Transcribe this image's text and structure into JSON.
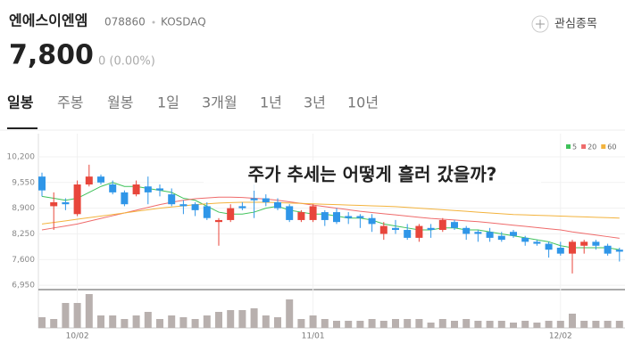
{
  "header": {
    "name": "엔에스이엔엠",
    "code": "078860",
    "market": "KOSDAQ",
    "watch": "관심종목",
    "price": "7,800",
    "change": "0 (0.00%)"
  },
  "tabs": [
    "일봉",
    "주봉",
    "월봉",
    "1일",
    "3개월",
    "1년",
    "3년",
    "10년"
  ],
  "overlay": "주가 추세는 어떻게 흘러 갔을까?",
  "chart_data": {
    "type": "candlestick",
    "categories": [
      null,
      null,
      null,
      "10/02",
      null,
      null,
      null,
      null,
      null,
      null,
      null,
      null,
      null,
      null,
      null,
      null,
      null,
      null,
      null,
      null,
      null,
      null,
      null,
      "11/01",
      null,
      null,
      null,
      null,
      null,
      null,
      null,
      null,
      null,
      null,
      null,
      null,
      null,
      null,
      null,
      null,
      null,
      null,
      null,
      null,
      "12/02",
      null,
      null,
      null,
      null,
      null
    ],
    "open": [
      9700,
      8950,
      9050,
      8750,
      9500,
      9700,
      9500,
      9300,
      9250,
      9450,
      9400,
      9250,
      9000,
      9000,
      8950,
      8550,
      8600,
      8950,
      9150,
      9150,
      9050,
      8950,
      8600,
      8600,
      8800,
      8800,
      8700,
      8700,
      8650,
      8250,
      8400,
      8350,
      8150,
      8400,
      8350,
      8550,
      8400,
      8300,
      8300,
      8200,
      8300,
      8150,
      8050,
      8000,
      7900,
      7750,
      7950,
      8050,
      7950,
      7850
    ],
    "high": [
      9800,
      9300,
      9150,
      9600,
      10000,
      9750,
      9600,
      9350,
      9600,
      9700,
      9500,
      9400,
      9100,
      9050,
      9050,
      8650,
      9000,
      9050,
      9500,
      9250,
      9150,
      9000,
      8850,
      9000,
      8850,
      8900,
      8800,
      8750,
      8750,
      8550,
      8600,
      8500,
      8500,
      8500,
      8650,
      8600,
      8450,
      8350,
      8400,
      8300,
      8350,
      8200,
      8100,
      8050,
      8050,
      8100,
      8100,
      8100,
      8000,
      7900
    ],
    "low": [
      9200,
      8350,
      8850,
      8700,
      9450,
      9500,
      9250,
      8950,
      9200,
      9000,
      9200,
      8950,
      8750,
      8700,
      8600,
      7950,
      8550,
      8850,
      8650,
      8950,
      8850,
      8550,
      8550,
      8550,
      8450,
      8500,
      8500,
      8400,
      8300,
      8100,
      8250,
      8100,
      8050,
      8150,
      8300,
      8350,
      8100,
      8050,
      8050,
      8050,
      8150,
      7950,
      7950,
      7650,
      7700,
      7250,
      7750,
      7850,
      7700,
      7550
    ],
    "close": [
      9350,
      9050,
      9000,
      9500,
      9700,
      9550,
      9300,
      9000,
      9500,
      9300,
      9350,
      9000,
      8950,
      8850,
      8650,
      8600,
      8900,
      8900,
      9100,
      9050,
      8900,
      8600,
      8800,
      8950,
      8600,
      8550,
      8650,
      8650,
      8500,
      8450,
      8350,
      8150,
      8450,
      8350,
      8600,
      8400,
      8250,
      8250,
      8150,
      8100,
      8200,
      8050,
      8000,
      7850,
      7750,
      8050,
      8050,
      7950,
      7750,
      7800
    ],
    "volume": [
      12,
      10,
      28,
      28,
      38,
      14,
      14,
      10,
      14,
      18,
      10,
      14,
      12,
      10,
      14,
      18,
      20,
      20,
      22,
      14,
      12,
      32,
      10,
      14,
      10,
      8,
      8,
      8,
      10,
      8,
      10,
      10,
      10,
      6,
      10,
      8,
      10,
      8,
      8,
      8,
      6,
      8,
      6,
      8,
      8,
      16,
      8,
      8,
      8,
      8
    ],
    "volume_ylim": [
      0,
      40
    ],
    "up_color": "#e8463b",
    "down_color": "#2f96e8",
    "series": [
      {
        "name": "5",
        "color": "#3fc25a",
        "values": [
          9200,
          9150,
          9100,
          9150,
          9300,
          9450,
          9550,
          9450,
          9450,
          9400,
          9350,
          9300,
          9150,
          9100,
          8950,
          8800,
          8750,
          8750,
          8800,
          8900,
          8950,
          8850,
          8800,
          8750,
          8750,
          8700,
          8650,
          8650,
          8600,
          8500,
          8450,
          8400,
          8350,
          8350,
          8400,
          8400,
          8350,
          8350,
          8300,
          8250,
          8200,
          8150,
          8100,
          8050,
          7950,
          7900,
          7900,
          7900,
          7900,
          7850
        ]
      },
      {
        "name": "20",
        "color": "#ef6b6b",
        "values": [
          8350,
          8400,
          8450,
          8500,
          8570,
          8640,
          8710,
          8780,
          8850,
          8920,
          8990,
          9050,
          9100,
          9140,
          9160,
          9180,
          9180,
          9170,
          9150,
          9130,
          9100,
          9060,
          9020,
          8980,
          8940,
          8900,
          8860,
          8820,
          8790,
          8760,
          8730,
          8700,
          8670,
          8640,
          8620,
          8600,
          8580,
          8560,
          8530,
          8500,
          8470,
          8440,
          8410,
          8380,
          8350,
          8300,
          8260,
          8220,
          8180,
          8140
        ]
      },
      {
        "name": "60",
        "color": "#f3b33d",
        "values": [
          8500,
          8540,
          8580,
          8620,
          8660,
          8700,
          8740,
          8780,
          8820,
          8860,
          8900,
          8930,
          8960,
          8990,
          9010,
          9030,
          9040,
          9050,
          9050,
          9050,
          9040,
          9030,
          9020,
          9010,
          9000,
          8990,
          8980,
          8970,
          8960,
          8950,
          8940,
          8920,
          8900,
          8880,
          8860,
          8840,
          8820,
          8800,
          8780,
          8760,
          8740,
          8730,
          8720,
          8710,
          8700,
          8690,
          8680,
          8670,
          8660,
          8650
        ]
      }
    ],
    "ylim": [
      6840,
      10560
    ],
    "yticks": [
      {
        "value": 6950,
        "label": "6,950"
      },
      {
        "value": 7600,
        "label": "7,600"
      },
      {
        "value": 8250,
        "label": "8,250"
      },
      {
        "value": 8900,
        "label": "8,900"
      },
      {
        "value": 9550,
        "label": "9,550"
      },
      {
        "value": 10200,
        "label": "10,200"
      }
    ],
    "grid": true
  }
}
